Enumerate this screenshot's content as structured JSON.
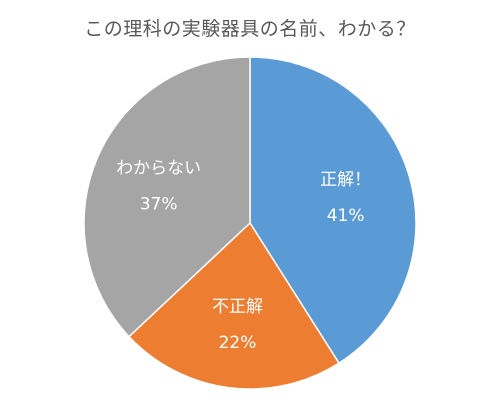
{
  "chart_data": {
    "type": "pie",
    "title": "この理科の実験器具の名前、わかる？",
    "categories": [
      "正解！",
      "不正解",
      "わからない"
    ],
    "values": [
      41,
      22,
      37
    ],
    "value_labels": [
      "41%",
      "22%",
      "37%"
    ],
    "colors": [
      "#5B9BD5",
      "#ED7D31",
      "#A5A5A5"
    ],
    "start": "12 o'clock",
    "direction": "clockwise",
    "legend": "none",
    "data_labels": "inside"
  }
}
